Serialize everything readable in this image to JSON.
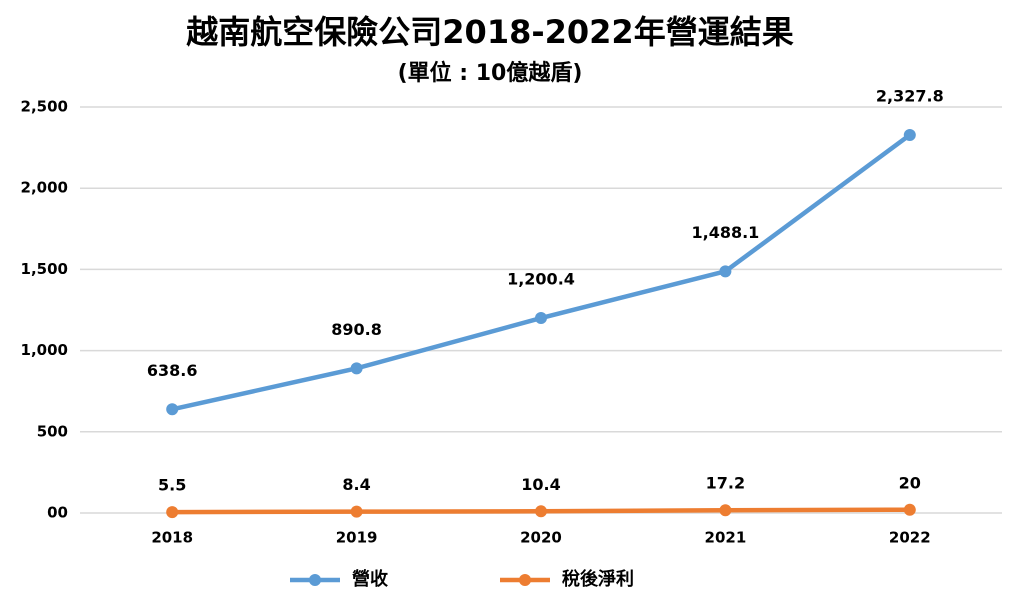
{
  "chart_data": {
    "type": "line",
    "title": "越南航空保險公司2018-2022年營運結果",
    "subtitle": "(單位 : 10億越盾)",
    "categories": [
      "2018",
      "2019",
      "2020",
      "2021",
      "2022"
    ],
    "series": [
      {
        "name": "營收",
        "color": "#5b9bd5",
        "values": [
          638.6,
          890.8,
          1200.4,
          1488.1,
          2327.8
        ],
        "value_labels": [
          "638.6",
          "890.8",
          "1,200.4",
          "1,488.1",
          "2,327.8"
        ]
      },
      {
        "name": "稅後淨利",
        "color": "#ed7d31",
        "values": [
          5.5,
          8.4,
          10.4,
          17.2,
          20
        ]
      }
    ],
    "ylim": [
      0,
      2500
    ],
    "yticks": [
      {
        "value": 0,
        "label": "00"
      },
      500,
      {
        "value": 1000,
        "label": "1,000"
      },
      {
        "value": 1500,
        "label": "1,500"
      },
      {
        "value": 2000,
        "label": "2,000"
      },
      {
        "value": 2500,
        "label": "2,500"
      }
    ],
    "grid": true,
    "legend": "bottom"
  }
}
